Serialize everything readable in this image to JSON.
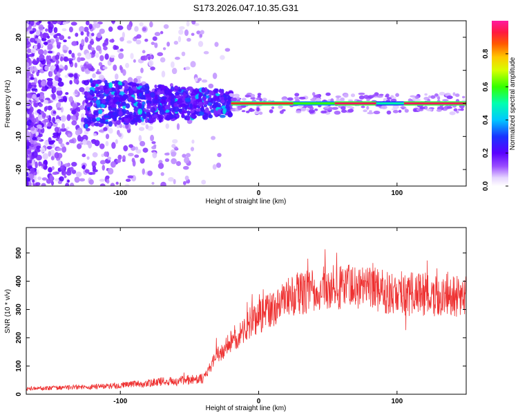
{
  "figure": {
    "title": "S173.2026.047.10.35.G31"
  },
  "chart_data": [
    {
      "type": "heatmap",
      "name": "spectrogram",
      "title": "S173.2026.047.10.35.G31",
      "xlabel": "Height of straight line (km)",
      "ylabel": "Frequency (Hz)",
      "xlim": [
        -168,
        150
      ],
      "ylim": [
        -25,
        25
      ],
      "xticks": [
        -100,
        0,
        100
      ],
      "yticks": [
        -20,
        -10,
        0,
        10,
        20
      ],
      "colorbar": {
        "label": "Normalized spectral amplitude",
        "range": [
          0,
          1
        ],
        "ticks": [
          "0.0",
          "0.2",
          "0.4",
          "0.6",
          "0.8"
        ]
      },
      "line_trace": {
        "frequency_hz": 0,
        "segments": [
          {
            "from_km": -20,
            "to_km": 25,
            "amplitude": 0.9
          },
          {
            "from_km": 25,
            "to_km": 55,
            "amplitude": 0.6
          },
          {
            "from_km": 55,
            "to_km": 85,
            "amplitude": 0.95
          },
          {
            "from_km": 85,
            "to_km": 105,
            "amplitude": 0.5
          },
          {
            "from_km": 105,
            "to_km": 150,
            "amplitude": 0.95
          }
        ]
      }
    },
    {
      "type": "line",
      "name": "snr",
      "xlabel": "Height of straight line (km)",
      "ylabel": "SNR (10 * v/v)",
      "xlim": [
        -168,
        150
      ],
      "ylim": [
        0,
        590
      ],
      "xticks": [
        -100,
        0,
        100
      ],
      "yticks": [
        0,
        100,
        200,
        300,
        400,
        500
      ],
      "color": "#ee3030",
      "series": [
        {
          "name": "SNR",
          "x": [
            -168,
            -150,
            -130,
            -110,
            -100,
            -90,
            -80,
            -70,
            -60,
            -50,
            -40,
            -35,
            -30,
            -25,
            -20,
            -15,
            -10,
            -5,
            0,
            5,
            10,
            15,
            20,
            25,
            30,
            40,
            50,
            60,
            70,
            80,
            90,
            100,
            110,
            120,
            130,
            140,
            150
          ],
          "values": [
            20,
            22,
            25,
            28,
            32,
            35,
            38,
            45,
            48,
            50,
            55,
            95,
            140,
            160,
            190,
            210,
            230,
            260,
            275,
            290,
            305,
            320,
            340,
            350,
            360,
            370,
            380,
            385,
            375,
            370,
            365,
            360,
            355,
            355,
            350,
            350,
            345
          ]
        }
      ]
    }
  ]
}
